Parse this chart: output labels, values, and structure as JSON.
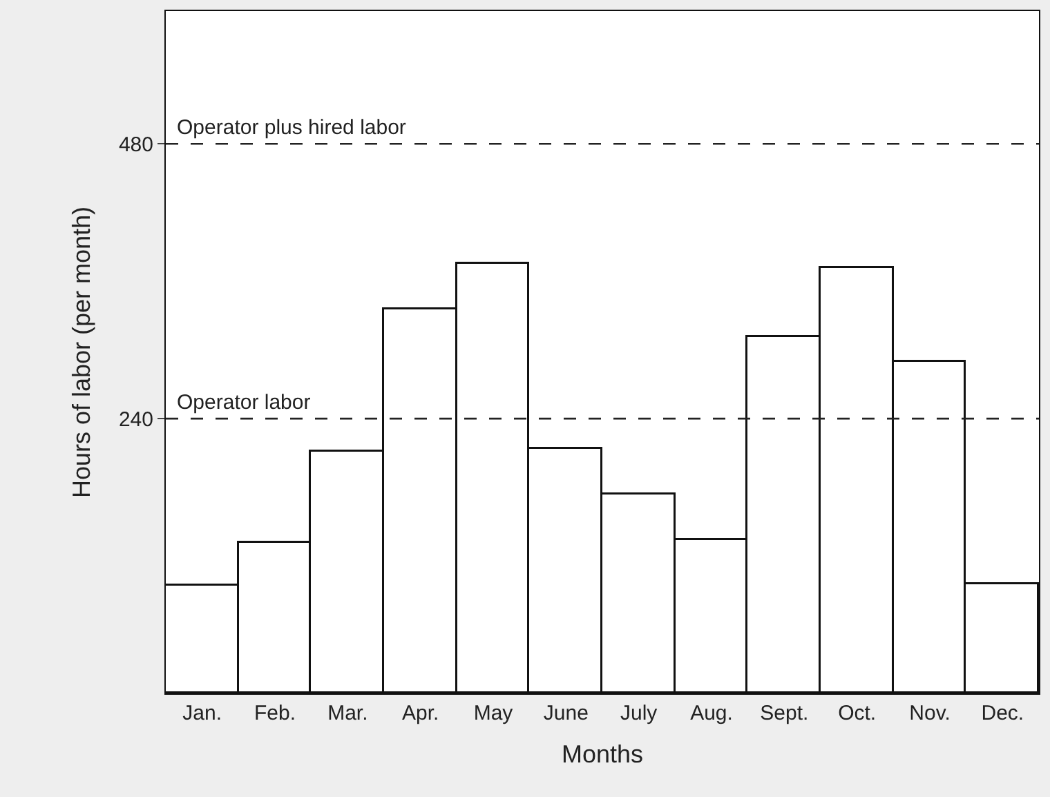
{
  "chart_data": {
    "type": "bar",
    "xlabel": "Months",
    "ylabel": "Hours of labor (per month)",
    "categories": [
      "Jan.",
      "Feb.",
      "Mar.",
      "Apr.",
      "May",
      "June",
      "July",
      "Aug.",
      "Sept.",
      "Oct.",
      "Nov.",
      "Dec."
    ],
    "values": [
      94,
      131,
      211,
      335,
      375,
      214,
      174,
      134,
      311,
      372,
      289,
      95
    ],
    "color": "#ffffff",
    "ylim": [
      0,
      596
    ],
    "yticks": [
      240,
      480
    ],
    "ref_lines": [
      {
        "axis": "y",
        "value": 480,
        "label": "Operator plus hired labor",
        "color": "#222222",
        "line_style": "dashed"
      },
      {
        "axis": "y",
        "value": 240,
        "label": "Operator labor",
        "color": "#222222",
        "line_style": "dashed"
      }
    ]
  }
}
